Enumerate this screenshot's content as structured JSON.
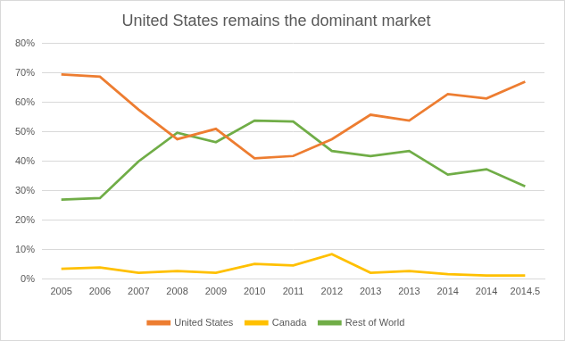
{
  "chart_data": {
    "type": "line",
    "title": "United States remains the dominant market",
    "categories": [
      "2005",
      "2006",
      "2007",
      "2008",
      "2009",
      "2010",
      "2011",
      "2012",
      "2013",
      "2013",
      "2014",
      "2014",
      "2014.5"
    ],
    "series": [
      {
        "name": "United States",
        "color": "#ed7d31",
        "values": [
          69.5,
          68.7,
          57.5,
          47.5,
          51,
          41,
          41.8,
          47.5,
          55.8,
          53.8,
          62.8,
          61.3,
          67
        ]
      },
      {
        "name": "Canada",
        "color": "#ffc000",
        "values": [
          3.5,
          4,
          2.2,
          2.8,
          2.2,
          5.2,
          4.7,
          8.5,
          2.2,
          2.8,
          1.7,
          1.3,
          1.3
        ]
      },
      {
        "name": "Rest of World",
        "color": "#70ad47",
        "values": [
          27,
          27.5,
          40,
          49.7,
          46.5,
          53.8,
          53.5,
          43.5,
          41.8,
          43.5,
          35.5,
          37.3,
          31.5
        ]
      }
    ],
    "ylim": [
      0,
      80
    ],
    "yticks": [
      {
        "value": 0,
        "label": "0%"
      },
      {
        "value": 10,
        "label": "10%"
      },
      {
        "value": 20,
        "label": "20%"
      },
      {
        "value": 30,
        "label": "30%"
      },
      {
        "value": 40,
        "label": "40%"
      },
      {
        "value": 50,
        "label": "50%"
      },
      {
        "value": 60,
        "label": "60%"
      },
      {
        "value": 70,
        "label": "70%"
      },
      {
        "value": 80,
        "label": "80%"
      }
    ],
    "grid": "y",
    "legend": "bottom"
  }
}
